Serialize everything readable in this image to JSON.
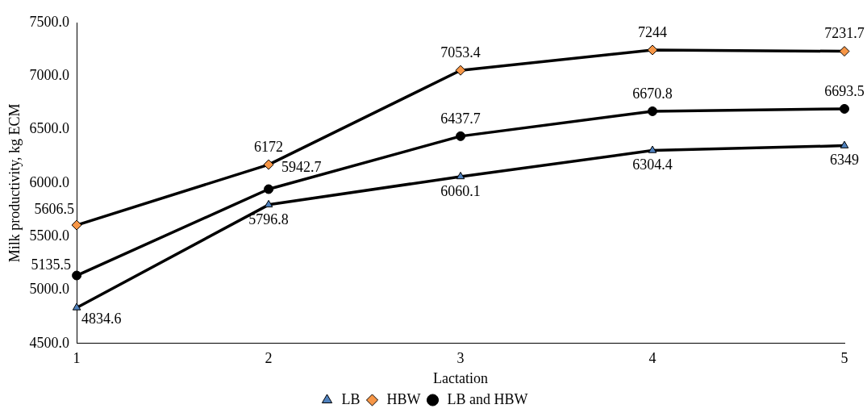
{
  "chart_data": {
    "type": "line",
    "xlabel": "Lactation",
    "ylabel": "Milk productivity, kg ECM",
    "categories": [
      "1",
      "2",
      "3",
      "4",
      "5"
    ],
    "series": [
      {
        "name": "LB",
        "color": "#4f81bd",
        "marker": "triangle",
        "values": [
          4834.6,
          5796.8,
          6060.1,
          6304.4,
          6349
        ]
      },
      {
        "name": "HBW",
        "color": "#f79646",
        "marker": "diamond",
        "values": [
          5606.5,
          6172,
          7053.4,
          7244,
          7231.7
        ]
      },
      {
        "name": "LB and HBW",
        "color": "#000000",
        "marker": "circle",
        "values": [
          5135.5,
          5942.7,
          6437.7,
          6670.8,
          6693.5
        ]
      }
    ],
    "ylim": [
      4500,
      7500
    ],
    "yticks": [
      {
        "value": 4500,
        "label": "4500.0"
      },
      {
        "value": 5000,
        "label": "5000.0"
      },
      {
        "value": 5500,
        "label": "5500.0"
      },
      {
        "value": 6000,
        "label": "6000.0"
      },
      {
        "value": 6500,
        "label": "6500.0"
      },
      {
        "value": 7000,
        "label": "7000.0"
      },
      {
        "value": 7500,
        "label": "7500.0"
      }
    ],
    "grid": false,
    "legend": "bottom",
    "data_labels": true
  }
}
